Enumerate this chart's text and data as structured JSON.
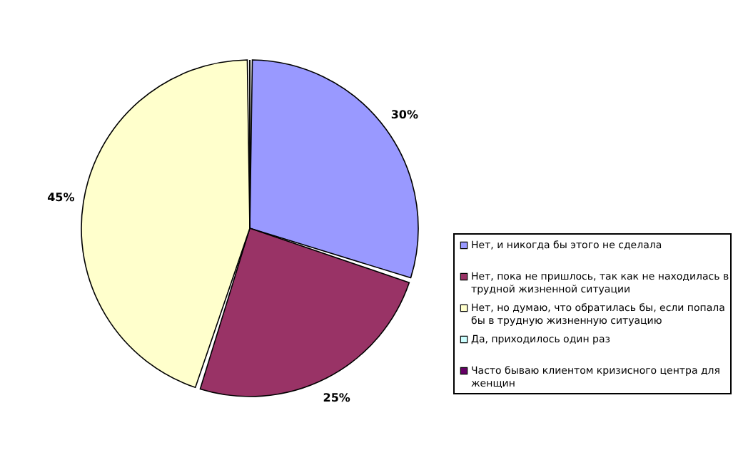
{
  "chart_data": {
    "type": "pie",
    "categories": [
      "Нет, и никогда бы этого не сделала",
      "Нет, пока не пришлось, так как не находилась в трудной жизненной ситуации",
      "Нет, но думаю, что обратилась бы, если попала бы в трудную жизненную ситуацию",
      "Да, приходилось один раз",
      "Часто бываю клиентом кризисного центра для женщин"
    ],
    "values": [
      30,
      25,
      45,
      0,
      0
    ],
    "colors": [
      "#9999ff",
      "#993366",
      "#ffffcc",
      "#ccffff",
      "#660066"
    ],
    "value_labels": [
      "30%",
      "25%",
      "45%",
      null,
      null
    ],
    "legend": "right"
  }
}
